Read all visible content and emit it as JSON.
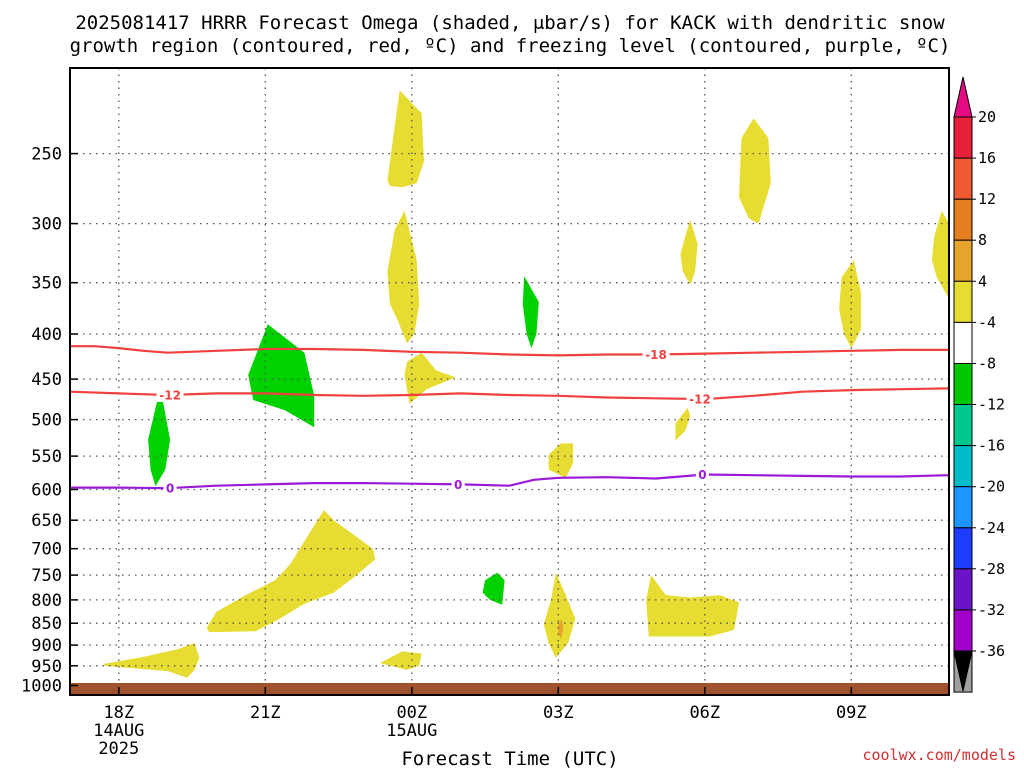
{
  "chart_data": {
    "type": "heatmap",
    "title_line1": "2025081417 HRRR Forecast Omega (shaded, μbar/s) for KACK with dendritic snow",
    "title_line2": "growth region (contoured, red, ºC) and freezing level (contoured, purple, ºC)",
    "xlabel": "Forecast Time (UTC)",
    "credit": "coolwx.com/models",
    "y_axis": {
      "label": "",
      "unit": "hPa",
      "ticks": [
        250,
        300,
        350,
        400,
        450,
        500,
        550,
        600,
        650,
        700,
        750,
        800,
        850,
        900,
        950,
        1000
      ],
      "range": [
        200,
        1025
      ]
    },
    "x_axis": {
      "unit": "hours from 2025-08-14 17Z",
      "range": [
        0,
        18
      ],
      "ticks": [
        {
          "hour": 1,
          "label": "18Z",
          "sub1": "14AUG",
          "sub2": "2025"
        },
        {
          "hour": 4,
          "label": "21Z",
          "sub1": "",
          "sub2": ""
        },
        {
          "hour": 7,
          "label": "00Z",
          "sub1": "15AUG",
          "sub2": ""
        },
        {
          "hour": 10,
          "label": "03Z",
          "sub1": "",
          "sub2": ""
        },
        {
          "hour": 13,
          "label": "06Z",
          "sub1": "",
          "sub2": ""
        },
        {
          "hour": 16,
          "label": "09Z",
          "sub1": "",
          "sub2": ""
        }
      ]
    },
    "grid": true,
    "ground_color": "#a0522d",
    "colorbar": {
      "labels": [
        "20",
        "16",
        "12",
        "8",
        "4",
        "-4",
        "-8",
        "-12",
        "-16",
        "-20",
        "-24",
        "-28",
        "-32",
        "-36"
      ],
      "colors": [
        "#e8203a",
        "#f05a32",
        "#e67e22",
        "#e6a52a",
        "#e6dc32",
        "#ffffff",
        "#00c800",
        "#00c78c",
        "#00bcc8",
        "#1e96ff",
        "#1e3cff",
        "#6a14c8",
        "#a000c8",
        "#a0a0a0"
      ],
      "max_arrow_color": "#e60a82",
      "min_arrow_color": "#000000"
    },
    "contours": [
      {
        "name": "-18",
        "color": "#f04040",
        "units": "ºC",
        "label_hours": [
          12
        ],
        "points": [
          [
            0,
            413
          ],
          [
            0.5,
            413
          ],
          [
            1,
            415
          ],
          [
            1.5,
            418
          ],
          [
            2,
            420
          ],
          [
            3,
            418
          ],
          [
            4,
            416
          ],
          [
            5,
            416
          ],
          [
            6,
            417
          ],
          [
            7,
            419
          ],
          [
            8,
            420
          ],
          [
            9,
            422
          ],
          [
            10,
            423
          ],
          [
            11,
            422
          ],
          [
            12,
            422
          ],
          [
            13,
            421
          ],
          [
            14,
            420
          ],
          [
            15,
            419
          ],
          [
            16,
            418
          ],
          [
            17,
            417
          ],
          [
            18,
            417
          ]
        ]
      },
      {
        "name": "-12",
        "color": "#f04040",
        "units": "ºC",
        "label_hours": [
          2.05,
          12.9
        ],
        "points": [
          [
            0,
            465
          ],
          [
            1,
            467
          ],
          [
            2,
            469
          ],
          [
            3,
            467
          ],
          [
            4,
            467
          ],
          [
            5,
            469
          ],
          [
            6,
            470
          ],
          [
            7,
            469
          ],
          [
            8,
            467
          ],
          [
            9,
            469
          ],
          [
            10,
            470
          ],
          [
            11,
            472
          ],
          [
            12,
            473
          ],
          [
            13,
            474
          ],
          [
            14,
            470
          ],
          [
            15,
            465
          ],
          [
            16,
            463
          ],
          [
            17,
            462
          ],
          [
            18,
            461
          ]
        ]
      },
      {
        "name": "0",
        "color": "#9a1ad8",
        "units": "ºC",
        "label_hours": [
          2.05,
          7.95,
          12.95
        ],
        "points": [
          [
            0,
            597
          ],
          [
            1,
            597
          ],
          [
            2,
            598
          ],
          [
            3,
            594
          ],
          [
            4,
            592
          ],
          [
            5,
            590
          ],
          [
            6,
            590
          ],
          [
            7,
            591
          ],
          [
            8,
            592
          ],
          [
            9,
            594
          ],
          [
            9.5,
            585
          ],
          [
            10,
            582
          ],
          [
            11,
            581
          ],
          [
            12,
            583
          ],
          [
            13,
            577
          ],
          [
            14,
            578
          ],
          [
            15,
            579
          ],
          [
            16,
            580
          ],
          [
            17,
            580
          ],
          [
            18,
            578
          ]
        ]
      }
    ],
    "shaded_regions": [
      {
        "name": "ascent-0",
        "bin": "-8 to -4",
        "color": "#00d200",
        "points": [
          [
            1.6,
            527
          ],
          [
            1.85,
            460
          ],
          [
            2.05,
            527
          ],
          [
            1.95,
            570
          ],
          [
            1.75,
            595
          ],
          [
            1.65,
            570
          ]
        ]
      },
      {
        "name": "ascent-1",
        "bin": "-8 to -4",
        "color": "#00d200",
        "points": [
          [
            3.65,
            445
          ],
          [
            4.05,
            390
          ],
          [
            4.8,
            420
          ],
          [
            5,
            470
          ],
          [
            5,
            510
          ],
          [
            4.4,
            488
          ],
          [
            3.75,
            475
          ]
        ]
      },
      {
        "name": "ascent-2",
        "bin": "-8 to -4",
        "color": "#00d200",
        "points": [
          [
            9.3,
            344
          ],
          [
            9.6,
            368
          ],
          [
            9.55,
            400
          ],
          [
            9.45,
            415
          ],
          [
            9.35,
            400
          ],
          [
            9.27,
            370
          ]
        ]
      },
      {
        "name": "ascent-3",
        "bin": "-8 to -4",
        "color": "#00d200",
        "points": [
          [
            8.5,
            760
          ],
          [
            8.75,
            745
          ],
          [
            8.9,
            760
          ],
          [
            8.85,
            810
          ],
          [
            8.6,
            800
          ],
          [
            8.45,
            785
          ]
        ]
      },
      {
        "name": "sink-0",
        "bin": "4 to 8",
        "color": "#e6dc32",
        "points": [
          [
            6.5,
            268
          ],
          [
            6.75,
            212
          ],
          [
            7.2,
            225
          ],
          [
            7.25,
            255
          ],
          [
            7.1,
            270
          ],
          [
            6.8,
            273
          ],
          [
            6.55,
            272
          ]
        ]
      },
      {
        "name": "sink-1",
        "bin": "4 to 8",
        "color": "#e6dc32",
        "points": [
          [
            6.5,
            340
          ],
          [
            6.65,
            305
          ],
          [
            6.85,
            290
          ],
          [
            7.1,
            330
          ],
          [
            7.15,
            370
          ],
          [
            7.05,
            400
          ],
          [
            6.9,
            410
          ],
          [
            6.7,
            385
          ],
          [
            6.55,
            370
          ]
        ]
      },
      {
        "name": "sink-2",
        "bin": "4 to 8",
        "color": "#e6dc32",
        "points": [
          [
            6.9,
            430
          ],
          [
            7.2,
            420
          ],
          [
            7.5,
            440
          ],
          [
            7.9,
            448
          ],
          [
            7.3,
            462
          ],
          [
            6.95,
            480
          ],
          [
            6.85,
            445
          ]
        ]
      },
      {
        "name": "sink-3",
        "bin": "4 to 8",
        "color": "#e6dc32",
        "points": [
          [
            12.7,
            297
          ],
          [
            12.85,
            316
          ],
          [
            12.8,
            340
          ],
          [
            12.7,
            352
          ],
          [
            12.55,
            340
          ],
          [
            12.5,
            325
          ],
          [
            12.6,
            310
          ]
        ]
      },
      {
        "name": "sink-4",
        "bin": "4 to 8",
        "color": "#e6dc32",
        "points": [
          [
            13.75,
            240
          ],
          [
            14,
            228
          ],
          [
            14.3,
            240
          ],
          [
            14.35,
            270
          ],
          [
            14.1,
            300
          ],
          [
            13.9,
            296
          ],
          [
            13.7,
            280
          ]
        ]
      },
      {
        "name": "sink-5",
        "bin": "4 to 8",
        "color": "#e6dc32",
        "points": [
          [
            15.8,
            345
          ],
          [
            16.05,
            330
          ],
          [
            16.2,
            360
          ],
          [
            16.2,
            395
          ],
          [
            16,
            415
          ],
          [
            15.85,
            400
          ],
          [
            15.75,
            375
          ]
        ]
      },
      {
        "name": "sink-6",
        "bin": "4 to 8",
        "color": "#e6dc32",
        "points": [
          [
            17.7,
            310
          ],
          [
            17.85,
            290
          ],
          [
            18,
            300
          ],
          [
            18,
            365
          ],
          [
            17.75,
            345
          ],
          [
            17.65,
            330
          ]
        ]
      },
      {
        "name": "sink-7",
        "bin": "4 to 8",
        "color": "#e6dc32",
        "points": [
          [
            12.4,
            505
          ],
          [
            12.65,
            485
          ],
          [
            12.7,
            495
          ],
          [
            12.6,
            515
          ],
          [
            12.4,
            528
          ]
        ]
      },
      {
        "name": "sink-8",
        "bin": "4 to 8",
        "color": "#e6dc32",
        "points": [
          [
            9.8,
            548
          ],
          [
            10.05,
            532
          ],
          [
            10.3,
            532
          ],
          [
            10.3,
            560
          ],
          [
            10.15,
            582
          ],
          [
            9.8,
            570
          ]
        ]
      },
      {
        "name": "sink-9",
        "bin": "4 to 8",
        "color": "#e6dc32",
        "points": [
          [
            2.8,
            860
          ],
          [
            3,
            825
          ],
          [
            3.6,
            790
          ],
          [
            4.2,
            760
          ],
          [
            4.5,
            730
          ],
          [
            5.2,
            633
          ],
          [
            5.4,
            650
          ],
          [
            6.2,
            700
          ],
          [
            6.25,
            720
          ],
          [
            5.8,
            755
          ],
          [
            5.4,
            785
          ],
          [
            4.8,
            808
          ],
          [
            4.3,
            840
          ],
          [
            3.8,
            868
          ],
          [
            2.85,
            870
          ]
        ]
      },
      {
        "name": "sink-10",
        "bin": "4 to 8",
        "color": "#e6dc32",
        "points": [
          [
            0.7,
            945
          ],
          [
            1.5,
            928
          ],
          [
            2.2,
            910
          ],
          [
            2.55,
            895
          ],
          [
            2.65,
            930
          ],
          [
            2.55,
            960
          ],
          [
            2.4,
            980
          ],
          [
            2.0,
            963
          ],
          [
            1.4,
            957
          ],
          [
            0.7,
            950
          ]
        ]
      },
      {
        "name": "sink-11",
        "bin": "4 to 8",
        "color": "#e6dc32",
        "points": [
          [
            6.35,
            943
          ],
          [
            6.8,
            915
          ],
          [
            7.2,
            920
          ],
          [
            7.15,
            950
          ],
          [
            6.9,
            960
          ],
          [
            6.4,
            945
          ]
        ]
      },
      {
        "name": "sink-12",
        "bin": "4 to 8",
        "color": "#e6dc32",
        "points": [
          [
            9.7,
            853
          ],
          [
            9.85,
            800
          ],
          [
            9.95,
            745
          ],
          [
            10.15,
            790
          ],
          [
            10.35,
            840
          ],
          [
            10.2,
            895
          ],
          [
            9.95,
            930
          ],
          [
            9.8,
            895
          ]
        ]
      },
      {
        "name": "sink-13",
        "bin": "4 to 8",
        "color": "#e6dc32",
        "points": [
          [
            11.8,
            800
          ],
          [
            11.9,
            750
          ],
          [
            12.2,
            790
          ],
          [
            12.7,
            795
          ],
          [
            13.3,
            790
          ],
          [
            13.7,
            805
          ],
          [
            13.6,
            865
          ],
          [
            13.1,
            880
          ],
          [
            12.4,
            880
          ],
          [
            11.85,
            880
          ]
        ]
      },
      {
        "name": "sink-14",
        "bin": "8 to 12",
        "color": "#e6a52a",
        "points": [
          [
            10.0,
            855
          ],
          [
            10.07,
            840
          ],
          [
            10.1,
            865
          ],
          [
            10.05,
            885
          ],
          [
            10.0,
            875
          ]
        ]
      }
    ]
  }
}
